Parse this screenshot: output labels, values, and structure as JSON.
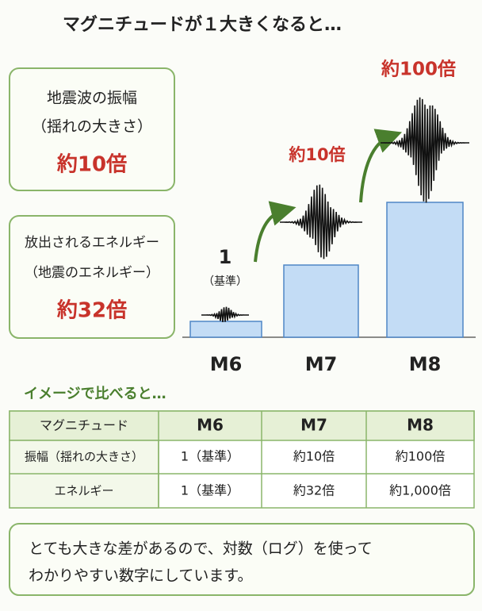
{
  "title": "マグニチュードが１大きくなると…",
  "boxes": [
    {
      "lines": [
        "地震波の振幅",
        "（揺れの大きさ）"
      ],
      "value": "約10倍"
    },
    {
      "lines": [
        "放出されるエネルギー",
        "（地震のエネルギー）"
      ],
      "value": "約32倍"
    }
  ],
  "illustration": {
    "bars": [
      {
        "label": "M6",
        "annotation": [
          "1",
          "（基準）"
        ]
      },
      {
        "label": "M7",
        "annotation": [
          "約10倍"
        ]
      },
      {
        "label": "M8",
        "annotation": [
          "約100倍"
        ]
      }
    ]
  },
  "subheading": "イメージで比べると…",
  "table": {
    "header": [
      "マグニチュード",
      "M6",
      "M7",
      "M8"
    ],
    "rows": [
      [
        "振幅（揺れの大きさ）",
        "1（基準）",
        "約10倍",
        "約100倍"
      ],
      [
        "エネルギー",
        "1（基準）",
        "約32倍",
        "約1,000倍"
      ]
    ]
  },
  "footer": [
    "とても大きな差があるので、対数（ログ）を使って",
    "わかりやすい数字にしています。"
  ]
}
